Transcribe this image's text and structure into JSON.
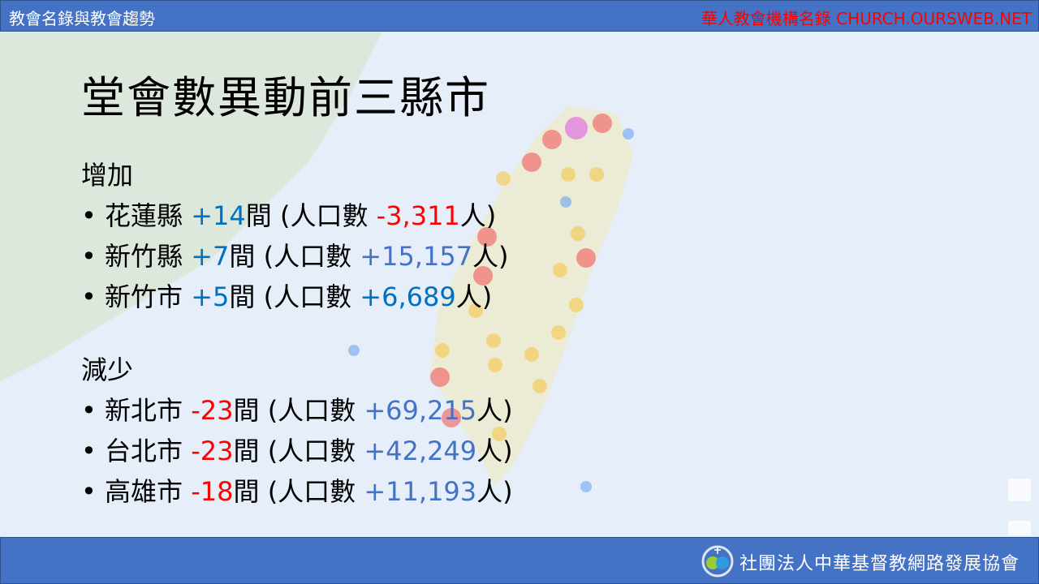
{
  "header": {
    "left": "教會名錄與教會趨勢",
    "right": "華人教會機構名錄 CHURCH.OURSWEB.NET"
  },
  "footer": {
    "org": "社團法人中華基督教網路發展協會"
  },
  "title": "堂會數異動前三縣市",
  "increase": {
    "label": "增加",
    "items": [
      {
        "city": "花蓮縣",
        "change": "+14",
        "unit": "間",
        "pop_label": " (人口數 ",
        "pop": "-3,311",
        "pop_unit": "人)",
        "change_color": "#0070c0",
        "pop_color": "#ff0000"
      },
      {
        "city": "新竹縣",
        "change": "+7",
        "unit": "間",
        "pop_label": " (人口數 ",
        "pop": "+15,157",
        "pop_unit": "人)",
        "change_color": "#0070c0",
        "pop_color": "#4472c4"
      },
      {
        "city": "新竹市",
        "change": "+5",
        "unit": "間",
        "pop_label": " (人口數 ",
        "pop": "+6,689",
        "pop_unit": "人)",
        "change_color": "#0070c0",
        "pop_color": "#0070c0"
      }
    ]
  },
  "decrease": {
    "label": "減少",
    "items": [
      {
        "city": "新北市",
        "change": "-23",
        "unit": "間",
        "pop_label": " (人口數 ",
        "pop": "+69,215",
        "pop_unit": "人)",
        "change_color": "#ff0000",
        "pop_color": "#4472c4"
      },
      {
        "city": "台北市",
        "change": "-23",
        "unit": "間",
        "pop_label": " (人口數 ",
        "pop": "+42,249",
        "pop_unit": "人)",
        "change_color": "#ff0000",
        "pop_color": "#4472c4"
      },
      {
        "city": "高雄市",
        "change": "-18",
        "unit": "間",
        "pop_label": " (人口數 ",
        "pop": "+11,193",
        "pop_unit": "人)",
        "change_color": "#ff0000",
        "pop_color": "#4472c4"
      }
    ]
  }
}
